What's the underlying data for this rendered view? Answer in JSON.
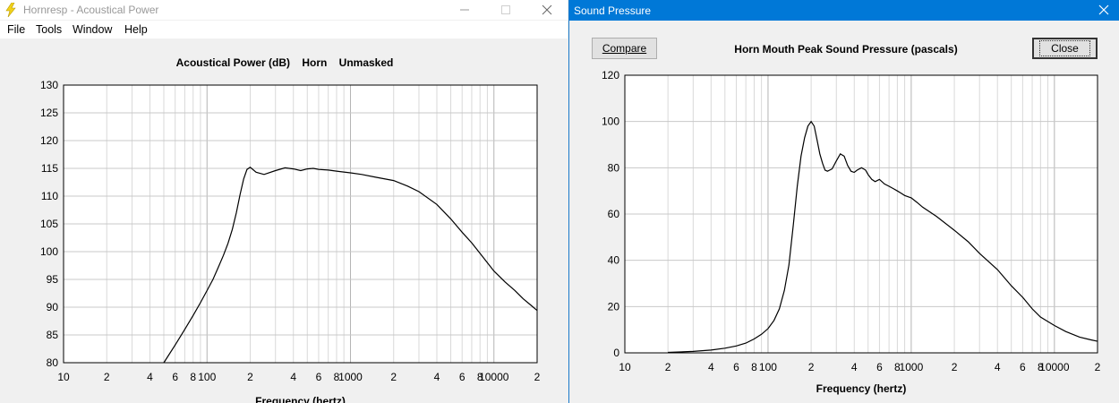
{
  "left_window": {
    "title": "Hornresp - Acoustical Power",
    "menu": [
      "File",
      "Tools",
      "Window",
      "Help"
    ],
    "chart_title": "Acoustical Power (dB)    Horn    Unmasked"
  },
  "right_window": {
    "title": "Sound Pressure",
    "compare_label": "Compare",
    "close_label": "Close",
    "chart_title": "Horn Mouth Peak Sound Pressure (pascals)"
  },
  "chart_data": [
    {
      "type": "line",
      "title": "Acoustical Power (dB)    Horn    Unmasked",
      "xlabel": "Frequency (hertz)",
      "ylabel": "",
      "xscale": "log",
      "xlim": [
        10,
        20000
      ],
      "ylim": [
        80,
        130
      ],
      "y_ticks": [
        "130",
        "125",
        "120",
        "115",
        "110",
        "105",
        "100",
        "95",
        "90",
        "85",
        "80"
      ],
      "x_ticks": [
        "10",
        "2",
        "4",
        "6",
        "8",
        "100",
        "2",
        "4",
        "6",
        "8",
        "1000",
        "2",
        "4",
        "6",
        "8",
        "10000",
        "2"
      ],
      "grid": true,
      "x": [
        50,
        60,
        70,
        80,
        90,
        100,
        110,
        120,
        130,
        140,
        150,
        160,
        170,
        180,
        190,
        200,
        220,
        250,
        300,
        350,
        400,
        450,
        500,
        550,
        600,
        700,
        800,
        1000,
        1200,
        1500,
        2000,
        2500,
        3000,
        4000,
        5000,
        6000,
        7000,
        8000,
        10000,
        12000,
        14000,
        16000,
        18000,
        20000
      ],
      "y": [
        80,
        83.2,
        86,
        88.5,
        90.8,
        93,
        95,
        97.2,
        99.3,
        101.5,
        104,
        107,
        110.3,
        113.1,
        114.8,
        115.2,
        114.3,
        113.9,
        114.6,
        115.1,
        114.9,
        114.6,
        114.9,
        115,
        114.8,
        114.7,
        114.5,
        114.2,
        113.9,
        113.4,
        112.8,
        111.8,
        110.8,
        108.5,
        105.9,
        103.5,
        101.6,
        99.7,
        96.5,
        94.5,
        93,
        91.5,
        90.4,
        89.4
      ]
    },
    {
      "type": "line",
      "title": "Horn Mouth Peak Sound Pressure (pascals)",
      "xlabel": "Frequency (hertz)",
      "ylabel": "",
      "xscale": "log",
      "xlim": [
        10,
        20000
      ],
      "ylim": [
        0,
        120
      ],
      "y_ticks": [
        "120",
        "100",
        "80",
        "60",
        "40",
        "20",
        "0"
      ],
      "x_ticks": [
        "10",
        "2",
        "4",
        "6",
        "8",
        "100",
        "2",
        "4",
        "6",
        "8",
        "1000",
        "2",
        "4",
        "6",
        "8",
        "10000",
        "2"
      ],
      "grid": true,
      "x": [
        20,
        30,
        40,
        50,
        60,
        70,
        80,
        90,
        100,
        110,
        120,
        130,
        140,
        150,
        160,
        170,
        180,
        190,
        200,
        210,
        220,
        230,
        240,
        250,
        260,
        280,
        300,
        320,
        340,
        360,
        380,
        400,
        420,
        450,
        480,
        500,
        530,
        560,
        600,
        650,
        700,
        750,
        800,
        850,
        900,
        1000,
        1100,
        1200,
        1500,
        2000,
        2500,
        3000,
        4000,
        5000,
        6000,
        7000,
        8000,
        10000,
        12000,
        15000,
        18000,
        20000
      ],
      "y": [
        0.2,
        0.6,
        1.2,
        2,
        3,
        4.2,
        6,
        8,
        10.5,
        14,
        19,
        27,
        38,
        55,
        72,
        85,
        93,
        98,
        100,
        98,
        92,
        86,
        82,
        79,
        78.5,
        79.5,
        83,
        86,
        85,
        81,
        78.5,
        78,
        79,
        80,
        79,
        77,
        75,
        74,
        75,
        73,
        72,
        71,
        70,
        69,
        68,
        67,
        65,
        63,
        59,
        53,
        48,
        43,
        36,
        29,
        24,
        19,
        15.5,
        11.8,
        9.2,
        6.8,
        5.6,
        5
      ]
    }
  ]
}
